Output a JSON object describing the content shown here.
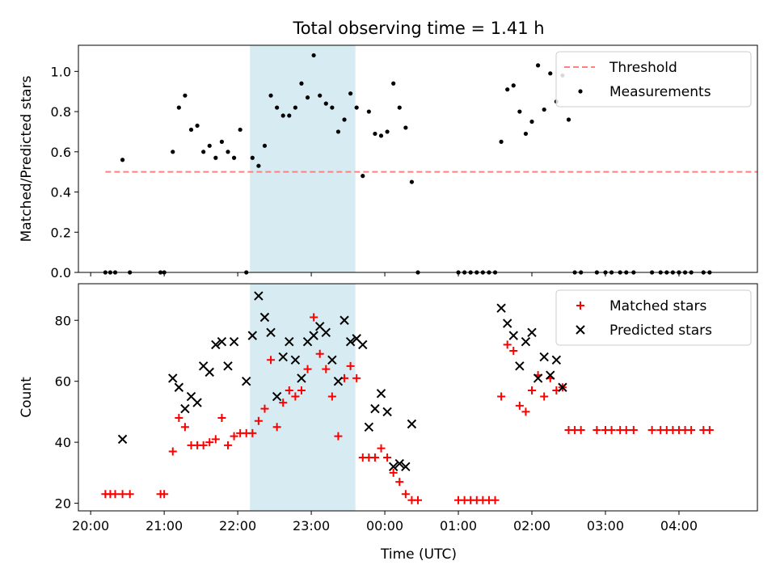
{
  "chart_data": {
    "title": "Total observing time = 1.41 h",
    "xlabel": "Time (UTC)",
    "x_ticks": [
      "20:00",
      "21:00",
      "22:00",
      "23:00",
      "00:00",
      "01:00",
      "02:00",
      "03:00",
      "04:00"
    ],
    "x_tick_times": [
      "20:00",
      "21:00",
      "22:00",
      "23:00",
      "24:00",
      "25:00",
      "26:00",
      "27:00",
      "28:00"
    ],
    "xlim": [
      "19:50",
      "29:04"
    ],
    "shaded_span": [
      "22:10",
      "23:36"
    ],
    "panels": [
      {
        "type": "scatter",
        "ylabel": "Matched/Predicted stars",
        "ylim": [
          0,
          1.13
        ],
        "y_ticks": [
          "0.0",
          "0.2",
          "0.4",
          "0.6",
          "0.8",
          "1.0"
        ],
        "y_tick_values": [
          0,
          0.2,
          0.4,
          0.6,
          0.8,
          1.0
        ],
        "legend_position": "top-right",
        "series": [
          {
            "name": "Threshold",
            "style": "dashed-line",
            "color": "#ff8080",
            "x": [
              "20:12",
              "29:04"
            ],
            "y": [
              0.5,
              0.5
            ]
          },
          {
            "name": "Measurements",
            "style": "dot",
            "color": "#000000",
            "x": [
              "20:12",
              "20:16",
              "20:20",
              "20:26",
              "20:32",
              "20:57",
              "21:00",
              "21:07",
              "21:12",
              "21:17",
              "21:22",
              "21:27",
              "21:32",
              "21:37",
              "21:42",
              "21:47",
              "21:52",
              "21:57",
              "22:02",
              "22:07",
              "22:12",
              "22:17",
              "22:22",
              "22:27",
              "22:32",
              "22:37",
              "22:42",
              "22:47",
              "22:52",
              "22:57",
              "23:02",
              "23:07",
              "23:12",
              "23:17",
              "23:22",
              "23:27",
              "23:32",
              "23:37",
              "23:42",
              "23:47",
              "23:52",
              "23:57",
              "24:02",
              "24:07",
              "24:12",
              "24:17",
              "24:22",
              "24:27",
              "25:00",
              "25:05",
              "25:10",
              "25:15",
              "25:20",
              "25:25",
              "25:30",
              "25:35",
              "25:40",
              "25:45",
              "25:50",
              "25:55",
              "26:00",
              "26:05",
              "26:10",
              "26:15",
              "26:20",
              "26:25",
              "26:30",
              "26:35",
              "26:40",
              "26:53",
              "27:00",
              "27:05",
              "27:12",
              "27:17",
              "27:23",
              "27:38",
              "27:45",
              "27:50",
              "27:55",
              "28:00",
              "28:05",
              "28:10",
              "28:20",
              "28:25"
            ],
            "y": [
              0,
              0,
              0,
              0.56,
              0,
              0,
              0,
              0.6,
              0.82,
              0.88,
              0.71,
              0.73,
              0.6,
              0.63,
              0.57,
              0.65,
              0.6,
              0.57,
              0.71,
              0,
              0.57,
              0.53,
              0.63,
              0.88,
              0.82,
              0.78,
              0.78,
              0.82,
              0.94,
              0.87,
              1.08,
              0.88,
              0.84,
              0.82,
              0.7,
              0.76,
              0.89,
              0.82,
              0.48,
              0.8,
              0.69,
              0.68,
              0.7,
              0.94,
              0.82,
              0.72,
              0.45,
              0,
              0,
              0,
              0,
              0,
              0,
              0,
              0,
              0.65,
              0.91,
              0.93,
              0.8,
              0.69,
              0.75,
              1.03,
              0.81,
              0.99,
              0.85,
              0.98,
              0.76,
              0,
              0,
              0,
              0,
              0,
              0,
              0,
              0,
              0,
              0,
              0,
              0,
              0,
              0,
              0,
              0,
              0
            ]
          }
        ]
      },
      {
        "type": "scatter",
        "ylabel": "Count",
        "ylim": [
          17.5,
          92
        ],
        "y_ticks": [
          "20",
          "40",
          "60",
          "80"
        ],
        "y_tick_values": [
          20,
          40,
          60,
          80
        ],
        "legend_position": "top-right",
        "series": [
          {
            "name": "Matched stars",
            "style": "plus",
            "color": "#ff0000",
            "x": [
              "20:12",
              "20:16",
              "20:20",
              "20:26",
              "20:32",
              "20:57",
              "21:00",
              "21:07",
              "21:12",
              "21:17",
              "21:22",
              "21:27",
              "21:32",
              "21:37",
              "21:42",
              "21:47",
              "21:52",
              "21:57",
              "22:02",
              "22:07",
              "22:12",
              "22:17",
              "22:22",
              "22:27",
              "22:32",
              "22:37",
              "22:42",
              "22:47",
              "22:52",
              "22:57",
              "23:02",
              "23:07",
              "23:12",
              "23:17",
              "23:22",
              "23:27",
              "23:32",
              "23:37",
              "23:42",
              "23:47",
              "23:52",
              "23:57",
              "24:02",
              "24:07",
              "24:12",
              "24:17",
              "24:22",
              "24:27",
              "25:00",
              "25:05",
              "25:10",
              "25:15",
              "25:20",
              "25:25",
              "25:30",
              "25:35",
              "25:40",
              "25:45",
              "25:50",
              "25:55",
              "26:00",
              "26:05",
              "26:10",
              "26:15",
              "26:20",
              "26:25",
              "26:30",
              "26:35",
              "26:40",
              "26:53",
              "27:00",
              "27:05",
              "27:12",
              "27:17",
              "27:23",
              "27:38",
              "27:45",
              "27:50",
              "27:55",
              "28:00",
              "28:05",
              "28:10",
              "28:20",
              "28:25"
            ],
            "y": [
              23,
              23,
              23,
              23,
              23,
              23,
              23,
              37,
              48,
              45,
              39,
              39,
              39,
              40,
              41,
              48,
              39,
              42,
              43,
              43,
              43,
              47,
              51,
              67,
              45,
              53,
              57,
              55,
              57,
              64,
              81,
              69,
              64,
              55,
              42,
              61,
              65,
              61,
              35,
              35,
              35,
              38,
              35,
              30,
              27,
              23,
              21,
              21,
              21,
              21,
              21,
              21,
              21,
              21,
              21,
              55,
              72,
              70,
              52,
              50,
              57,
              62,
              55,
              61,
              57,
              58,
              44,
              44,
              44,
              44,
              44,
              44,
              44,
              44,
              44,
              44,
              44,
              44,
              44,
              44,
              44,
              44,
              44,
              44
            ]
          },
          {
            "name": "Predicted stars",
            "style": "x",
            "color": "#000000",
            "x": [
              "20:26",
              "21:07",
              "21:12",
              "21:17",
              "21:22",
              "21:27",
              "21:32",
              "21:37",
              "21:42",
              "21:47",
              "21:52",
              "21:57",
              "22:07",
              "22:12",
              "22:17",
              "22:22",
              "22:27",
              "22:32",
              "22:37",
              "22:42",
              "22:47",
              "22:52",
              "22:57",
              "23:02",
              "23:07",
              "23:12",
              "23:17",
              "23:22",
              "23:27",
              "23:32",
              "23:37",
              "23:42",
              "23:47",
              "23:52",
              "23:57",
              "24:02",
              "24:07",
              "24:12",
              "24:17",
              "24:22",
              "25:35",
              "25:40",
              "25:45",
              "25:50",
              "25:55",
              "26:00",
              "26:05",
              "26:10",
              "26:15",
              "26:20",
              "26:25"
            ],
            "y": [
              41,
              61,
              58,
              51,
              55,
              53,
              65,
              63,
              72,
              73,
              65,
              73,
              60,
              75,
              88,
              81,
              76,
              55,
              68,
              73,
              67,
              61,
              73,
              75,
              78,
              76,
              67,
              60,
              80,
              73,
              74,
              72,
              45,
              51,
              56,
              50,
              32,
              33,
              32,
              46,
              84,
              79,
              75,
              65,
              73,
              76,
              61,
              68,
              62,
              67,
              58
            ]
          }
        ]
      }
    ]
  }
}
